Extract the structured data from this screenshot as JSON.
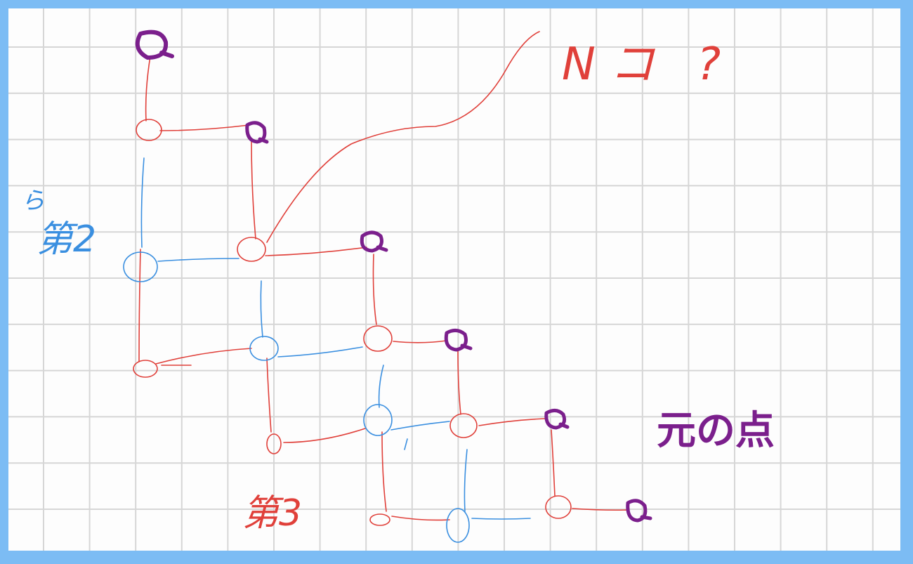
{
  "colors": {
    "frame": "#7cbcf4",
    "grid": "#d6d6d6",
    "red": "#e0403a",
    "blue": "#3a8fe0",
    "purple": "#7b1f8c"
  },
  "labels": {
    "count_question": "Nコ ?",
    "second": "第2",
    "second_mark": "ら",
    "third": "第3",
    "origin_points": "元の点"
  }
}
